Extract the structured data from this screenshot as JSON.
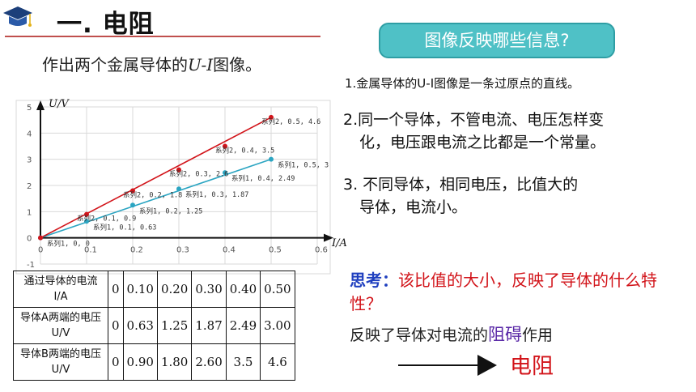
{
  "title": "一. 电阻",
  "subtitle_pre": "作出两个金属导体的",
  "subtitle_var": "U-I",
  "subtitle_post": "图像。",
  "question": "图像反映哪些信息?",
  "points": [
    "1.金属导体的U-I图像是一条过原点的直线。",
    "2.同一个导体，不管电流、电压怎样变",
    "化，电压跟电流之比都是一个常量。",
    "3. 不同导体，相同电压，比值大的",
    "导体，电流小。"
  ],
  "think_label": "思考：",
  "think_text": "该比值的大小，反映了导体的什么特性？",
  "reflect_pre": "反映了导体对电流的",
  "reflect_hl": "阻碍",
  "reflect_post": "作用",
  "answer": "电阻",
  "colors": {
    "red": "#d2141a",
    "blue": "#1f3fbf",
    "teal": "#2ba5c2",
    "box": "#4fc1c6"
  },
  "icons": [
    "graduation-cap-icon",
    "right-arrow-icon"
  ],
  "table": {
    "headers": [
      "通过导体的电流 I/A",
      "导体A两端的电压 U/V",
      "导体B两端的电压 U/V"
    ],
    "current": [
      "0",
      "0.10",
      "0.20",
      "0.30",
      "0.40",
      "0.50"
    ],
    "voltage_a": [
      "0",
      "0.63",
      "1.25",
      "1.87",
      "2.49",
      "3.00"
    ],
    "voltage_b": [
      "0",
      "0.90",
      "1.80",
      "2.60",
      "3.5",
      "4.6"
    ]
  },
  "chart_data": {
    "type": "scatter",
    "xlabel": "I/A",
    "ylabel": "U/V",
    "xlim": [
      0,
      0.6
    ],
    "ylim": [
      -1,
      5
    ],
    "xticks": [
      "0",
      "0.1",
      "0.2",
      "0.3",
      "0.4",
      "0.5",
      "0.6"
    ],
    "yticks": [
      "-1",
      "0",
      "1",
      "2",
      "3",
      "4",
      "5"
    ],
    "grid": true,
    "series": [
      {
        "name": "系列1",
        "color": "#2ba5c2",
        "x": [
          0,
          0.1,
          0.2,
          0.3,
          0.4,
          0.5
        ],
        "y": [
          0,
          0.63,
          1.25,
          1.87,
          2.49,
          3.0
        ],
        "labels": [
          "系列1, 0, 0",
          "系列1, 0.1, 0.63",
          "系列1, 0.2, 1.25",
          "系列1, 0.3, 1.87",
          "系列1, 0.4, 2.49",
          "系列1, 0.5, 3"
        ]
      },
      {
        "name": "系列2",
        "color": "#d2141a",
        "x": [
          0,
          0.1,
          0.2,
          0.3,
          0.4,
          0.5
        ],
        "y": [
          0,
          0.9,
          1.8,
          2.6,
          3.5,
          4.6
        ],
        "labels": [
          "系列2, 0.1, 0.9",
          "系列2, 0.2, 1.8",
          "系列2, 0.3, 2.6",
          "系列2, 0.4, 3.5",
          "系列2, 0.5, 4.6"
        ]
      }
    ]
  }
}
